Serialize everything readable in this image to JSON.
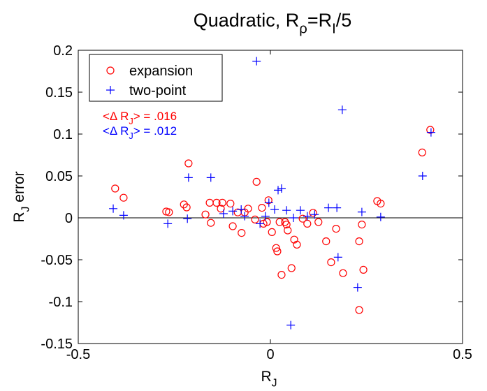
{
  "chart_data": {
    "type": "scatter",
    "title": [
      "Quadratic, R",
      "ρ",
      "=R",
      "I",
      "/5"
    ],
    "xlabel": [
      "R",
      "J"
    ],
    "ylabel": [
      "R",
      "J",
      " error"
    ],
    "xlim": [
      -0.5,
      0.5
    ],
    "xticks": [
      -0.5,
      0,
      0.5
    ],
    "ylim": [
      -0.15,
      0.2
    ],
    "yticks": [
      -0.15,
      -0.1,
      -0.05,
      0,
      0.05,
      0.1,
      0.15,
      0.2
    ],
    "hline": 0,
    "legend": "upper left",
    "series": [
      {
        "name": "expansion",
        "color": "#ff0000",
        "marker": "circle",
        "x": [
          -0.404,
          -0.382,
          -0.271,
          -0.264,
          -0.225,
          -0.218,
          -0.213,
          -0.169,
          -0.158,
          -0.155,
          -0.14,
          -0.129,
          -0.125,
          -0.104,
          -0.098,
          -0.085,
          -0.075,
          -0.067,
          -0.058,
          -0.036,
          -0.022,
          -0.009,
          -0.005,
          0.004,
          0.015,
          0.018,
          0.024,
          0.029,
          0.038,
          0.042,
          0.045,
          0.055,
          0.062,
          0.069,
          0.084,
          0.096,
          0.111,
          0.125,
          0.145,
          0.158,
          0.171,
          0.189,
          0.231,
          0.231,
          0.238,
          0.242,
          0.278,
          0.287,
          0.395,
          0.416,
          -0.018,
          -0.04
        ],
        "values": [
          0.035,
          0.024,
          0.0075,
          0.0067,
          0.016,
          0.0125,
          0.065,
          0.004,
          0.018,
          -0.006,
          0.018,
          0.011,
          0.018,
          0.017,
          -0.01,
          0.0065,
          -0.018,
          0.0065,
          0.011,
          0.043,
          0.012,
          -0.005,
          0.021,
          -0.017,
          -0.036,
          -0.04,
          -0.005,
          -0.068,
          -0.005,
          -0.008,
          -0.015,
          -0.06,
          -0.026,
          -0.032,
          -0.001,
          -0.007,
          0.006,
          -0.005,
          -0.028,
          -0.053,
          -0.013,
          -0.066,
          -0.028,
          -0.11,
          -0.008,
          -0.062,
          0.02,
          0.017,
          0.078,
          0.105,
          -0.007,
          -0.002
        ]
      },
      {
        "name": "two-point",
        "color": "#0000ff",
        "marker": "plus",
        "x": [
          -0.409,
          -0.382,
          -0.267,
          -0.216,
          -0.213,
          -0.155,
          -0.122,
          -0.098,
          -0.076,
          -0.036,
          -0.027,
          -0.004,
          0.011,
          0.02,
          0.029,
          0.053,
          0.042,
          0.06,
          0.078,
          0.115,
          0.151,
          0.173,
          0.187,
          0.176,
          0.227,
          0.238,
          0.287,
          0.396,
          0.418,
          -0.013,
          -0.067,
          0.096
        ],
        "values": [
          0.011,
          0.003,
          -0.007,
          -0.001,
          0.048,
          0.048,
          0.005,
          0.008,
          0.01,
          0.187,
          -0.007,
          0.018,
          0.01,
          0.033,
          0.035,
          -0.128,
          0.009,
          0,
          0.009,
          0.004,
          0.012,
          0.012,
          0.129,
          -0.047,
          -0.083,
          0.007,
          0.001,
          0.05,
          0.102,
          0.002,
          0.002,
          0.002
        ]
      }
    ],
    "annotations": [
      {
        "parts": [
          "<Δ R",
          "J",
          "> = .016"
        ],
        "color": "#ff0000"
      },
      {
        "parts": [
          "<Δ R",
          "J",
          "> = .012"
        ],
        "color": "#0000ff"
      }
    ]
  }
}
